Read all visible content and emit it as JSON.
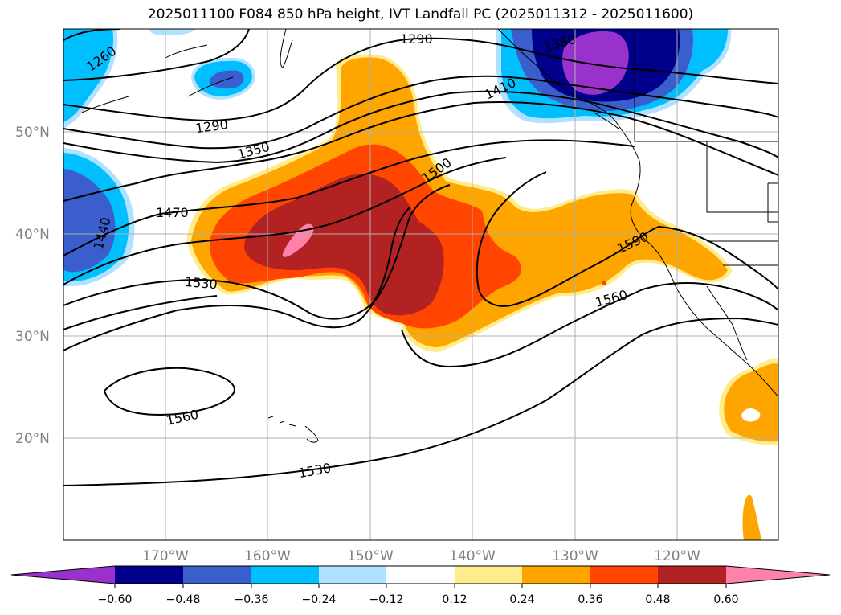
{
  "title": "2025011100 F084 850 hPa height, IVT Landfall PC (2025011312 - 2025011600)",
  "map": {
    "lat_labels": [
      {
        "label": "50°N",
        "lat": 50
      },
      {
        "label": "40°N",
        "lat": 40
      },
      {
        "label": "30°N",
        "lat": 30
      },
      {
        "label": "20°N",
        "lat": 20
      }
    ],
    "lon_labels": [
      {
        "label": "170°W",
        "lon": -170
      },
      {
        "label": "160°W",
        "lon": -160
      },
      {
        "label": "150°W",
        "lon": -150
      },
      {
        "label": "140°W",
        "lon": -140
      },
      {
        "label": "130°W",
        "lon": -130
      },
      {
        "label": "120°W",
        "lon": -120
      }
    ],
    "contour_labels": [
      "1260",
      "1290",
      "1290",
      "1350",
      "1380",
      "1410",
      "1440",
      "1470",
      "1500",
      "1530",
      "1530",
      "1560",
      "1560",
      "1590"
    ]
  },
  "colorbar": {
    "colors": [
      "#9932cc",
      "#00008b",
      "#3a5fcd",
      "#00bfff",
      "#b0e2ff",
      "#ffffff",
      "#ffec8b",
      "#ffa500",
      "#ff4500",
      "#b22222",
      "#ff82ab"
    ],
    "ticks": [
      "−0.60",
      "−0.48",
      "−0.36",
      "−0.24",
      "−0.12",
      "0.12",
      "0.24",
      "0.36",
      "0.48",
      "0.60"
    ]
  }
}
